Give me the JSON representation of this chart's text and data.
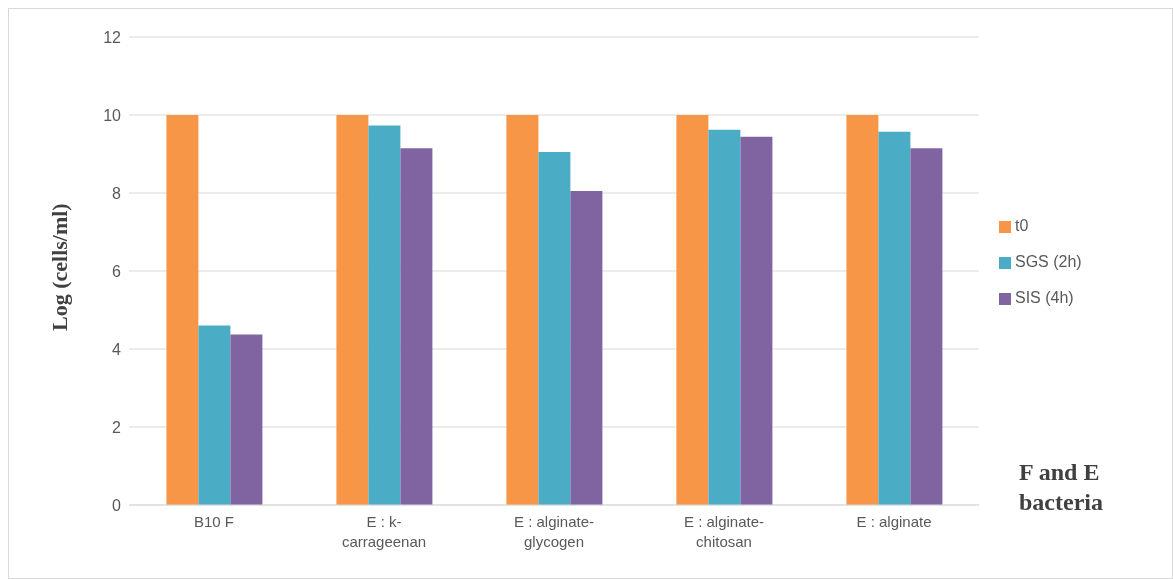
{
  "chart_data": {
    "type": "bar",
    "xlabel": "F and E bacteria",
    "ylabel": "Log (cells/ml)",
    "categories": [
      "B10 F",
      "E : k-carrageenan",
      "E : alginate-glycogen",
      "E : alginate-chitosan",
      "E : alginate"
    ],
    "series": [
      {
        "name": "t0",
        "color": "#f79646",
        "values": [
          10,
          10,
          10,
          10,
          10
        ]
      },
      {
        "name": "SGS (2h)",
        "color": "#4bacc6",
        "values": [
          4.6,
          9.73,
          9.05,
          9.62,
          9.57
        ]
      },
      {
        "name": "SIS (4h)",
        "color": "#8064a2",
        "values": [
          4.37,
          9.15,
          8.05,
          9.44,
          9.15
        ]
      }
    ],
    "ylim": [
      0,
      12
    ],
    "yticks": [
      0,
      2,
      4,
      6,
      8,
      10,
      12
    ],
    "grid": "y",
    "legend": "right"
  }
}
